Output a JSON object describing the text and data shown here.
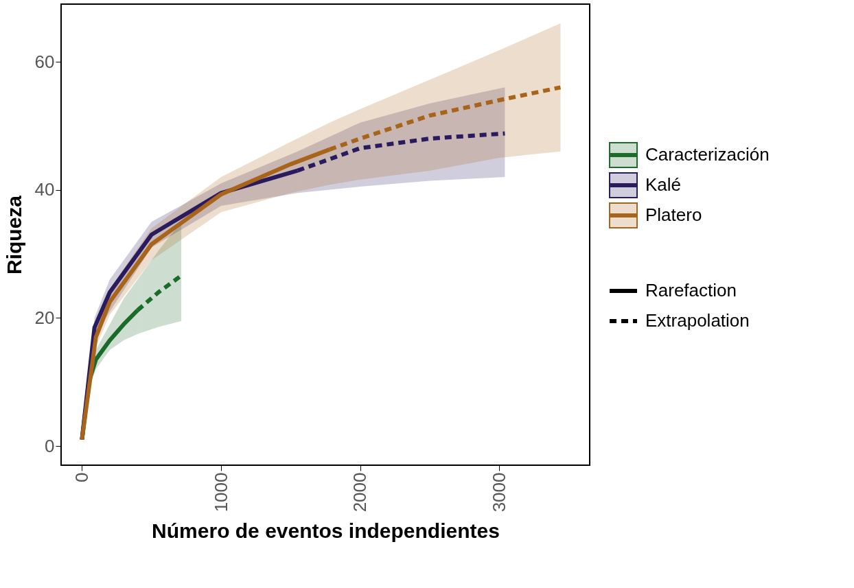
{
  "chart_data": {
    "type": "line",
    "xlabel": "Número de eventos independientes",
    "ylabel": "Riqueza",
    "xlim": [
      -150,
      3650
    ],
    "ylim": [
      -3,
      69
    ],
    "xticks": [
      0,
      1000,
      2000,
      3000
    ],
    "yticks": [
      0,
      20,
      40,
      60
    ],
    "grid": false,
    "legend": "right",
    "marker": "none",
    "annotations": [
      "Rarefaction",
      "Extrapolation"
    ],
    "series": [
      {
        "name": "Caracterización",
        "color": "#1b6b2b",
        "line_style": "solid",
        "x": [
          0,
          50,
          100,
          200,
          300,
          400
        ],
        "values": [
          1,
          10,
          13.5,
          16.5,
          19,
          21.2
        ],
        "lower": [
          1,
          9,
          12,
          15,
          16.5,
          17.5
        ],
        "upper": [
          1,
          11,
          15,
          19,
          23,
          26
        ]
      },
      {
        "color": "#1b6b2b",
        "line_style": "dashed",
        "x": [
          400,
          550,
          714
        ],
        "values": [
          21.2,
          24,
          26.6
        ],
        "lower": [
          17.5,
          18.6,
          19.5
        ],
        "upper": [
          26,
          30.5,
          35
        ]
      },
      {
        "name": "Kalé",
        "color": "#2a1a5e",
        "line_style": "solid",
        "x": [
          0,
          90,
          200,
          500,
          1000,
          1550
        ],
        "values": [
          1,
          18.5,
          24,
          33,
          39.5,
          43
        ],
        "lower": [
          1,
          17,
          21,
          31,
          37.5,
          39.5
        ],
        "upper": [
          1,
          20,
          26,
          35,
          41,
          46
        ]
      },
      {
        "color": "#2a1a5e",
        "line_style": "dashed",
        "x": [
          1550,
          2000,
          2500,
          3040
        ],
        "values": [
          43,
          46.5,
          48,
          48.8
        ],
        "lower": [
          39.5,
          40.5,
          41.4,
          42
        ],
        "upper": [
          46,
          50.5,
          53.5,
          56
        ]
      },
      {
        "name": "Platero",
        "color": "#a8641a",
        "line_style": "solid",
        "x": [
          0,
          100,
          200,
          500,
          1000,
          1500,
          1780
        ],
        "values": [
          1,
          17,
          22.5,
          31.5,
          39.3,
          44,
          46.3
        ],
        "lower": [
          1,
          15.5,
          20.5,
          29,
          36.5,
          39.5,
          40.8
        ],
        "upper": [
          1,
          18.5,
          24.5,
          34,
          42,
          47.5,
          50.5
        ]
      },
      {
        "color": "#a8641a",
        "line_style": "dashed",
        "x": [
          1780,
          2000,
          2500,
          3000,
          3440
        ],
        "values": [
          46.3,
          48,
          51.6,
          54,
          56
        ],
        "lower": [
          40.8,
          41.6,
          43,
          45,
          46
        ],
        "upper": [
          50.5,
          52.6,
          57.2,
          61.8,
          66
        ]
      }
    ]
  }
}
